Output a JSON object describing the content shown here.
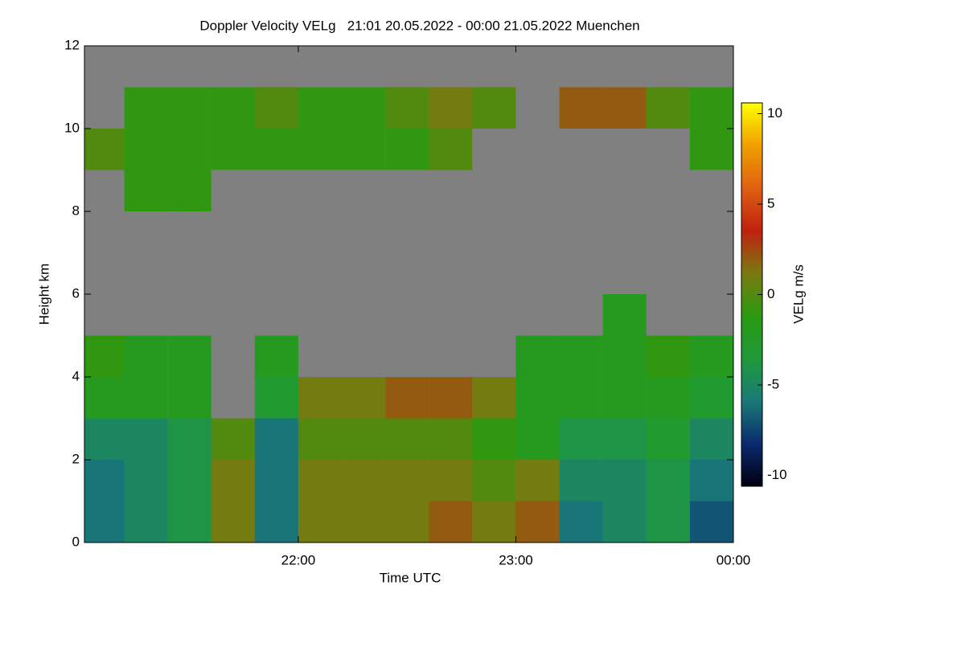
{
  "chart_data": {
    "type": "heatmap",
    "title": "Doppler Velocity VELg   21:01 20.05.2022 - 00:00 21.05.2022 Muenchen",
    "x_label": "Time UTC",
    "y_label": "Height km",
    "colorbar_label": "VELg m/s",
    "x": [
      21.1,
      21.3,
      21.5,
      21.7,
      21.9,
      22.1,
      22.3,
      22.5,
      22.7,
      22.9,
      23.1,
      23.3,
      23.5,
      23.7,
      23.9
    ],
    "y": [
      0.5,
      1.5,
      2.5,
      3.5,
      4.5,
      5.5,
      6.5,
      7.5,
      8.5,
      9.5,
      10.5,
      11.5
    ],
    "z": [
      [
        -6,
        -5,
        -4,
        1,
        -6,
        1,
        1,
        1,
        2,
        1,
        2,
        -6,
        -5,
        -4,
        -7
      ],
      [
        -6,
        -5,
        -4,
        1,
        -6,
        1,
        1,
        1,
        1,
        0,
        1,
        -5,
        -5,
        -4,
        -6
      ],
      [
        -5,
        -5,
        -4,
        0,
        -6,
        0,
        0,
        0,
        0,
        -1,
        -2,
        -4,
        -4,
        -3,
        -5
      ],
      [
        -2,
        -2,
        -2,
        null,
        -3,
        1,
        1,
        2,
        2,
        1,
        -2,
        -2,
        -2,
        -2,
        -3
      ],
      [
        -1,
        -2,
        -2,
        null,
        -2,
        null,
        null,
        null,
        null,
        null,
        -2,
        -2,
        -2,
        -1,
        -2
      ],
      [
        null,
        null,
        null,
        null,
        null,
        null,
        null,
        null,
        null,
        null,
        null,
        null,
        -2,
        null,
        null
      ],
      [
        null,
        null,
        null,
        null,
        null,
        null,
        null,
        null,
        null,
        null,
        null,
        null,
        null,
        null,
        null
      ],
      [
        null,
        null,
        null,
        null,
        null,
        null,
        null,
        null,
        null,
        null,
        null,
        null,
        null,
        null,
        null
      ],
      [
        null,
        -1,
        -1,
        null,
        null,
        null,
        null,
        null,
        null,
        null,
        null,
        null,
        null,
        null,
        null
      ],
      [
        0,
        -1,
        -1,
        -1,
        -1,
        -1,
        -1,
        -1,
        0,
        null,
        null,
        null,
        null,
        null,
        -1
      ],
      [
        null,
        -1,
        -1,
        -1,
        0,
        -1,
        -1,
        0,
        1,
        0,
        null,
        2,
        2,
        0,
        -1
      ],
      [
        null,
        null,
        null,
        null,
        null,
        null,
        null,
        null,
        null,
        null,
        null,
        null,
        null,
        null,
        null
      ]
    ],
    "xlim": [
      21.017,
      24.0
    ],
    "ylim": [
      0,
      12
    ],
    "clim": [
      -10.6,
      10.6
    ],
    "xticks": [
      {
        "value": 22,
        "label": "22:00"
      },
      {
        "value": 23,
        "label": "23:00"
      },
      {
        "value": 24,
        "label": "00:00"
      }
    ],
    "yticks": [
      0,
      2,
      4,
      6,
      8,
      10,
      12
    ],
    "cticks": [
      -10,
      -5,
      0,
      5,
      10
    ],
    "colorscale": [
      "#000010",
      "#0a2a6e",
      "#1a7a78",
      "#1e9a3a",
      "#2a9a10",
      "#7a7a10",
      "#c02010",
      "#e06010",
      "#f0a000",
      "#ffff00"
    ],
    "missing_color": "#808080"
  }
}
